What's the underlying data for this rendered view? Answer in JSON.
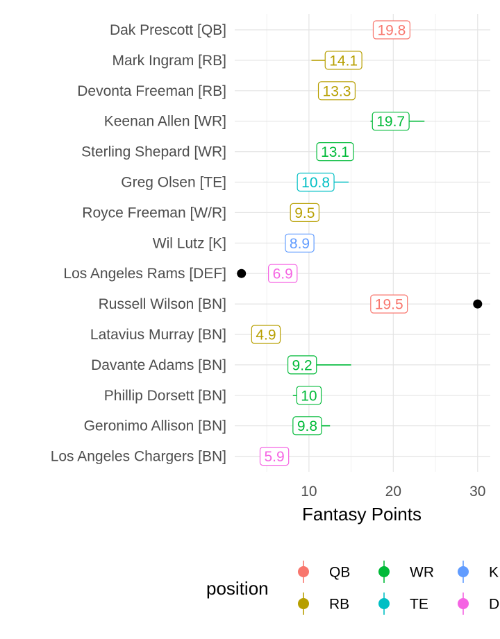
{
  "chart_data": {
    "type": "scatter",
    "xlabel": "Fantasy Points",
    "ylabel": "",
    "title": "",
    "xlim": [
      1.2,
      31.5
    ],
    "xticks": [
      10,
      20,
      30
    ],
    "grid": true,
    "legend": {
      "title": "position",
      "placement": "bottom",
      "entries": [
        {
          "name": "QB",
          "color": "#F8766D"
        },
        {
          "name": "RB",
          "color": "#B79F00"
        },
        {
          "name": "WR",
          "color": "#00BA38"
        },
        {
          "name": "TE",
          "color": "#00BFC4"
        },
        {
          "name": "K",
          "color": "#619CFF"
        },
        {
          "name": "DEF",
          "color": "#F564E3"
        }
      ]
    },
    "players": [
      {
        "name": "Dak Prescott [QB]",
        "position": "QB",
        "projection": 19.8,
        "label": "19.8",
        "low": 19.8,
        "high": 19.8,
        "actual": null
      },
      {
        "name": "Mark Ingram [RB]",
        "position": "RB",
        "projection": 14.1,
        "label": "14.1",
        "low": 10.3,
        "high": 14.1,
        "actual": null
      },
      {
        "name": "Devonta Freeman [RB]",
        "position": "RB",
        "projection": 13.3,
        "label": "13.3",
        "low": 13.3,
        "high": 13.3,
        "actual": null
      },
      {
        "name": "Keenan Allen [WR]",
        "position": "WR",
        "projection": 19.7,
        "label": "19.7",
        "low": 17.3,
        "high": 23.7,
        "actual": null
      },
      {
        "name": "Sterling Shepard [WR]",
        "position": "WR",
        "projection": 13.1,
        "label": "13.1",
        "low": 13.1,
        "high": 13.1,
        "actual": null
      },
      {
        "name": "Greg Olsen [TE]",
        "position": "TE",
        "projection": 10.8,
        "label": "10.8",
        "low": 10.8,
        "high": 14.7,
        "actual": null
      },
      {
        "name": "Royce Freeman [W/R]",
        "position": "RB",
        "projection": 9.5,
        "label": "9.5",
        "low": 9.5,
        "high": 9.5,
        "actual": null
      },
      {
        "name": "Wil Lutz [K]",
        "position": "K",
        "projection": 8.9,
        "label": "8.9",
        "low": 8.9,
        "high": 8.9,
        "actual": null
      },
      {
        "name": "Los Angeles Rams [DEF]",
        "position": "DEF",
        "projection": 6.9,
        "label": "6.9",
        "low": 6.9,
        "high": 6.9,
        "actual": 2.0
      },
      {
        "name": "Russell Wilson [BN]",
        "position": "QB",
        "projection": 19.5,
        "label": "19.5",
        "low": 19.5,
        "high": 19.5,
        "actual": 30.0
      },
      {
        "name": "Latavius Murray [BN]",
        "position": "RB",
        "projection": 4.9,
        "label": "4.9",
        "low": 4.9,
        "high": 4.9,
        "actual": null
      },
      {
        "name": "Davante Adams [BN]",
        "position": "WR",
        "projection": 9.2,
        "label": "9.2",
        "low": 9.2,
        "high": 15.0,
        "actual": null
      },
      {
        "name": "Phillip Dorsett [BN]",
        "position": "WR",
        "projection": 10.0,
        "label": "10",
        "low": 8.1,
        "high": 10.0,
        "actual": null
      },
      {
        "name": "Geronimo Allison [BN]",
        "position": "WR",
        "projection": 9.8,
        "label": "9.8",
        "low": 9.8,
        "high": 12.5,
        "actual": null
      },
      {
        "name": "Los Angeles Chargers [BN]",
        "position": "DEF",
        "projection": 5.9,
        "label": "5.9",
        "low": 5.9,
        "high": 5.9,
        "actual": null
      }
    ]
  }
}
